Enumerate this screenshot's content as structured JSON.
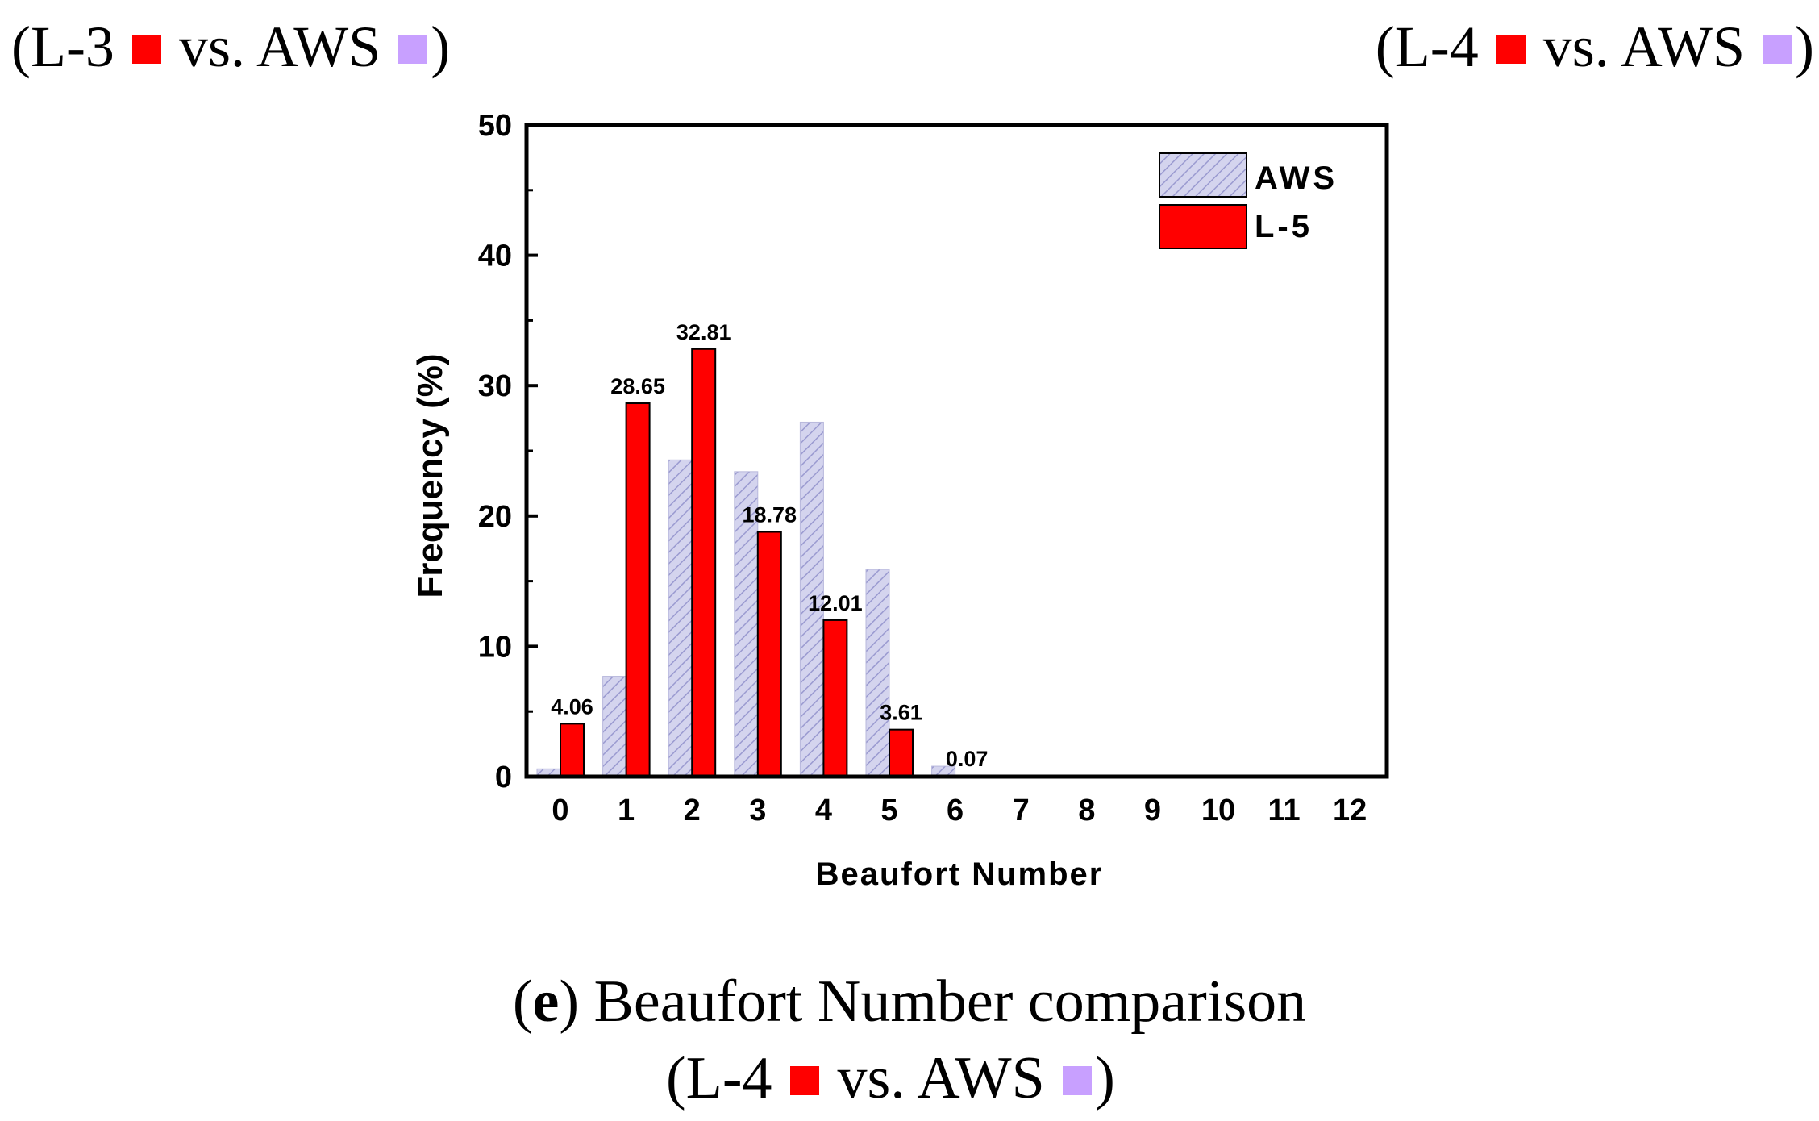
{
  "header": {
    "left": {
      "prefix": "(L-3",
      "middle": "vs. AWS",
      "suffix": ")"
    },
    "right": {
      "prefix": "(L-4",
      "middle": "vs. AWS",
      "suffix": ")"
    }
  },
  "caption": {
    "label": "(e)",
    "label_open": "(",
    "label_letter": "e",
    "label_close": ")",
    "title": "Beaufort Number comparison",
    "sub_prefix": "(L-4",
    "sub_middle": "vs. AWS",
    "sub_suffix": ")"
  },
  "colors": {
    "l_series": "#ff0000",
    "aws_series": "#c8c8e8",
    "aws_hatch": "#9090c8",
    "aws_square": "#c8a0ff"
  },
  "chart_data": {
    "type": "bar",
    "title": "",
    "xlabel": "Beaufort Number",
    "ylabel": "Frequency (%)",
    "ylim": [
      0,
      50
    ],
    "yticks": [
      "0",
      "10",
      "20",
      "30",
      "40",
      "50"
    ],
    "categories": [
      "0",
      "1",
      "2",
      "3",
      "4",
      "5",
      "6",
      "7",
      "8",
      "9",
      "10",
      "11",
      "12"
    ],
    "series": [
      {
        "name": "AWS",
        "values": [
          0.6,
          7.7,
          24.3,
          23.4,
          27.2,
          15.9,
          0.8,
          0,
          0,
          0,
          0,
          0,
          0
        ]
      },
      {
        "name": "L-5",
        "values": [
          4.06,
          28.65,
          32.81,
          18.78,
          12.01,
          3.61,
          0.07,
          0,
          0,
          0,
          0,
          0,
          0
        ]
      }
    ],
    "data_labels": [
      "4.06",
      "28.65",
      "32.81",
      "18.78",
      "12.01",
      "3.61",
      "0.07"
    ],
    "legend": {
      "position": "top-right",
      "entries": [
        "AWS",
        "L-5"
      ]
    }
  }
}
